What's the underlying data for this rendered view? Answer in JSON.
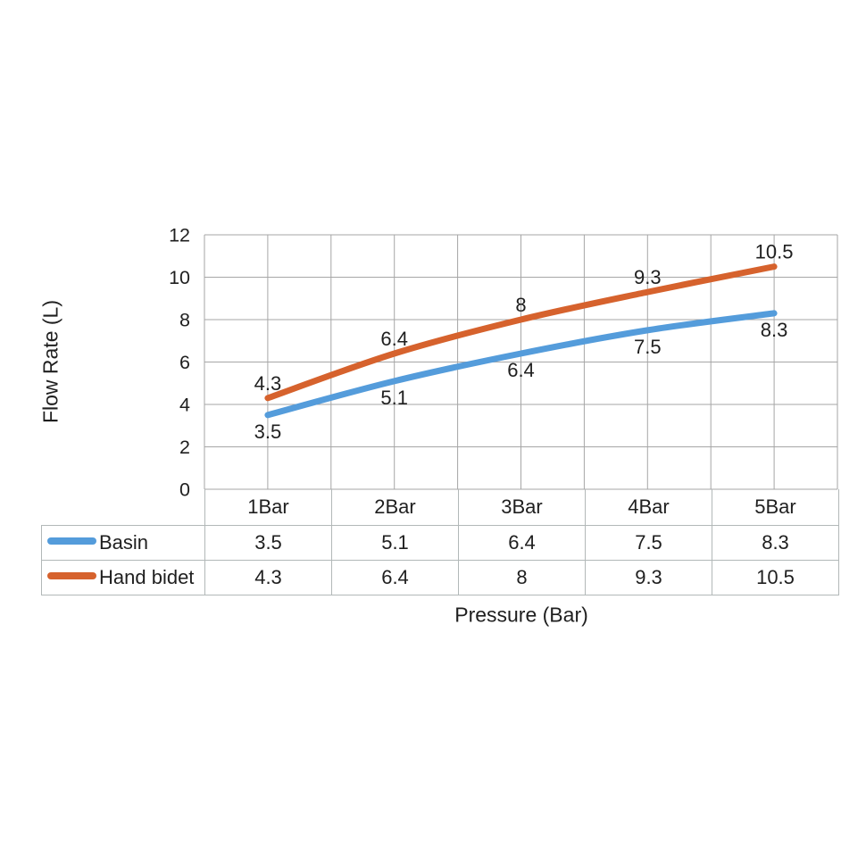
{
  "figure": {
    "background": "#FFFFFF",
    "text_color": "#1F1F1F"
  },
  "chart_data": {
    "type": "line",
    "title": "",
    "xlabel": "Pressure (Bar)",
    "ylabel": "Flow Rate (L)",
    "categories": [
      "1Bar",
      "2Bar",
      "3Bar",
      "4Bar",
      "5Bar"
    ],
    "series": [
      {
        "name": "Basin",
        "values": [
          3.5,
          5.1,
          6.4,
          7.5,
          8.3
        ],
        "color": "#549CDB",
        "label_position": "below"
      },
      {
        "name": "Hand bidet",
        "values": [
          4.3,
          6.4,
          8,
          9.3,
          10.5
        ],
        "color": "#D6622D",
        "label_position": "above"
      }
    ],
    "ylim": [
      0,
      12
    ],
    "y_ticks": [
      0,
      2,
      4,
      6,
      8,
      10,
      12
    ],
    "grid": true,
    "smooth_lines": true,
    "data_labels": true,
    "legend_position": "table-left",
    "grid_color": "#A6A6A6",
    "table_border_color": "#B2B8B8"
  }
}
